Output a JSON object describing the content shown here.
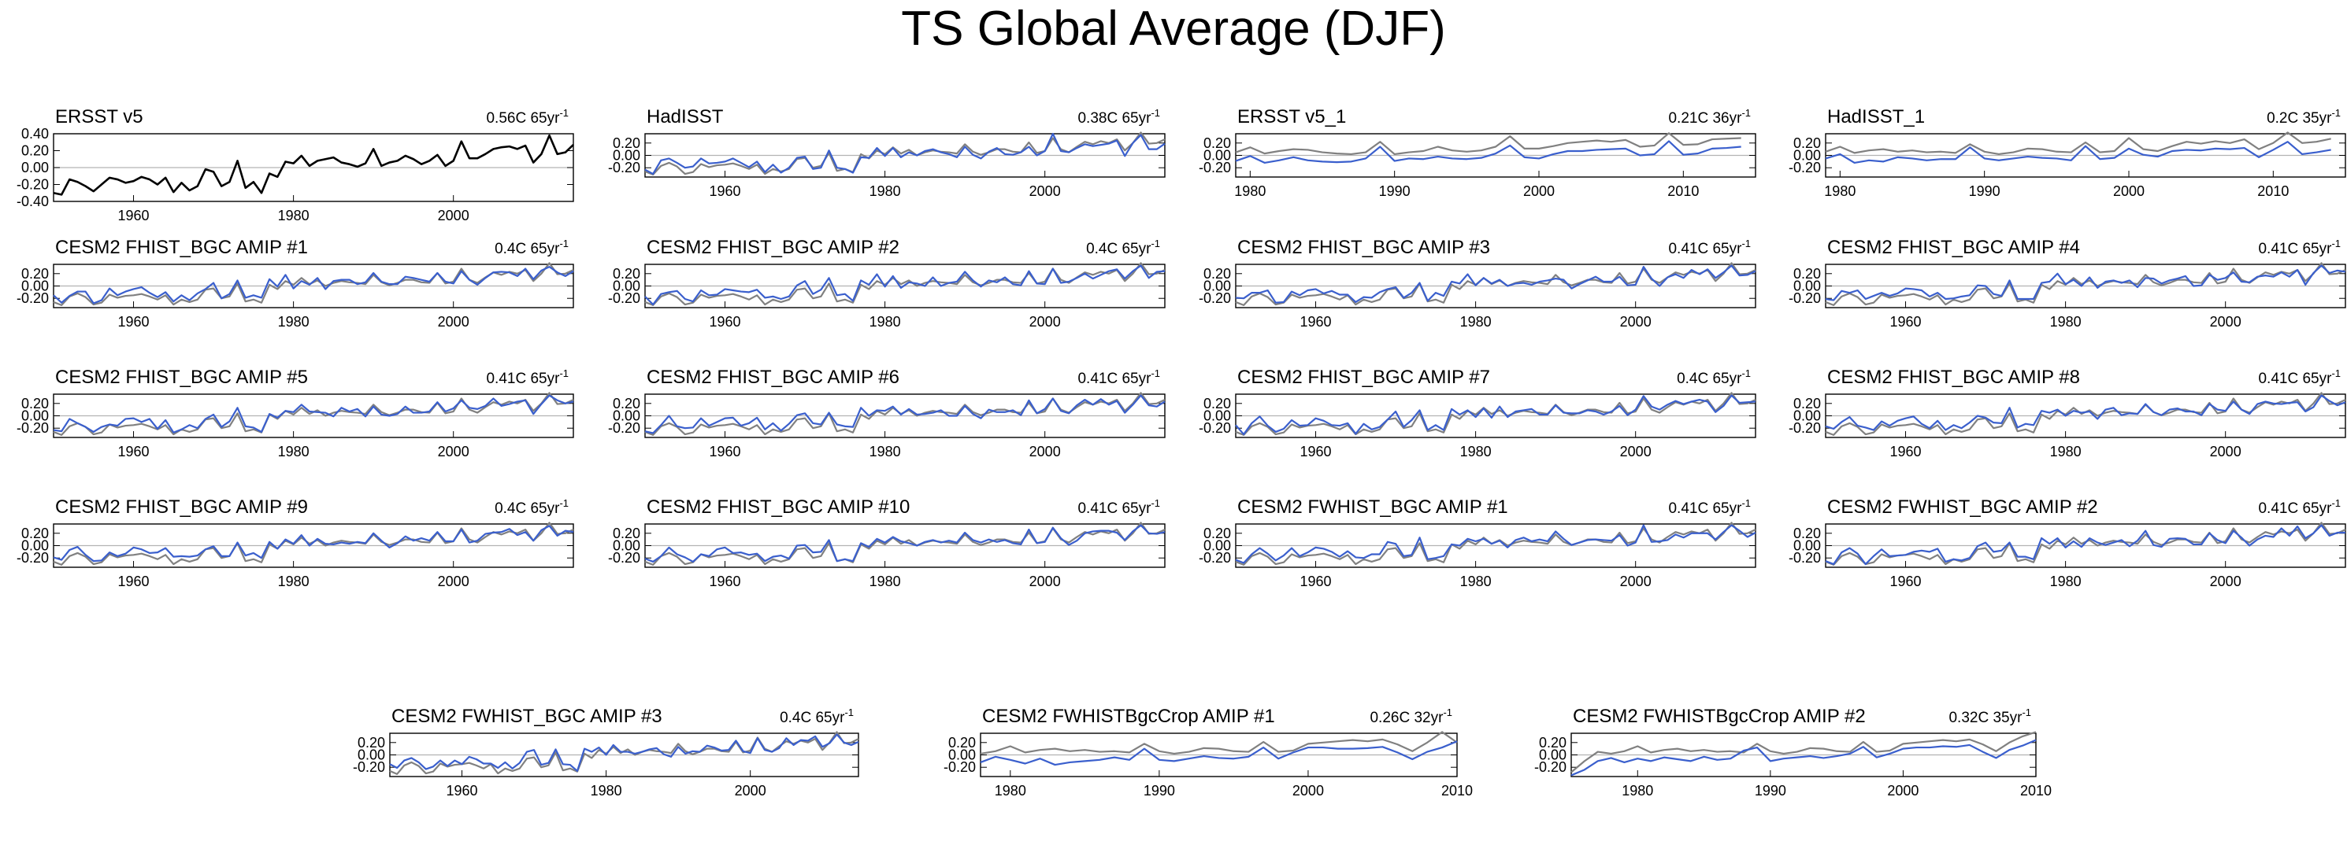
{
  "title": "TS Global Average (DJF)",
  "colors": {
    "observed": "#808080",
    "model": "#3a5fcd",
    "obs_only": "#000000",
    "zero_line": "#b3b3b3"
  },
  "chart_data": [
    {
      "type": "line",
      "title": "ERSST v5",
      "trend": "0.56C 65yr",
      "trend_sup": "-1",
      "xlim": [
        1950,
        2015
      ],
      "ylim": [
        -0.4,
        0.4
      ],
      "yticks": [
        "0.40",
        "0.20",
        "0.00",
        "-0.20",
        "-0.40"
      ],
      "xticks": [
        "1960",
        "1980",
        "2000"
      ],
      "series": [
        {
          "values": [
            -0.3,
            -0.32,
            -0.14,
            -0.17,
            -0.22,
            -0.28,
            -0.2,
            -0.12,
            -0.14,
            -0.18,
            -0.16,
            -0.11,
            -0.14,
            -0.2,
            -0.12,
            -0.29,
            -0.18,
            -0.27,
            -0.22,
            -0.02,
            -0.05,
            -0.22,
            -0.17,
            0.08,
            -0.24,
            -0.17,
            -0.3,
            -0.07,
            -0.11,
            0.07,
            0.05,
            0.14,
            0.02,
            0.08,
            0.1,
            0.12,
            0.06,
            0.04,
            0.01,
            0.05,
            0.22,
            0.02,
            0.06,
            0.08,
            0.14,
            0.1,
            0.04,
            0.08,
            0.15,
            0.02,
            0.08,
            0.31,
            0.11,
            0.11,
            0.16,
            0.22,
            0.24,
            0.25,
            0.22,
            0.26,
            0.06,
            0.16,
            0.38,
            0.16,
            0.18,
            0.27
          ]
        }
      ]
    },
    {
      "type": "line",
      "title": "HadISST",
      "trend": "0.38C 65yr",
      "trend_sup": "-1",
      "xlim": [
        1950,
        2015
      ],
      "ylim": [
        -0.35,
        0.35
      ],
      "yticks": [
        "0.20",
        "0.00",
        "-0.20"
      ],
      "xticks": [
        "1960",
        "1980",
        "2000"
      ],
      "series": [
        {
          "name": "obs",
          "values": [
            -0.26,
            -0.31,
            -0.17,
            -0.12,
            -0.18,
            -0.3,
            -0.27,
            -0.14,
            -0.19,
            -0.16,
            -0.15,
            -0.13,
            -0.17,
            -0.22,
            -0.15,
            -0.3,
            -0.22,
            -0.26,
            -0.22,
            -0.06,
            -0.04,
            -0.2,
            -0.17,
            0.04,
            -0.25,
            -0.22,
            -0.27,
            0.02,
            -0.05,
            0.08,
            0.02,
            0.13,
            0.03,
            0.09,
            0.0,
            0.05,
            0.08,
            0.06,
            0.05,
            0.03,
            0.18,
            0.06,
            0.01,
            0.05,
            0.1,
            0.1,
            0.06,
            0.05,
            0.21,
            0.04,
            0.07,
            0.28,
            0.1,
            0.05,
            0.14,
            0.22,
            0.18,
            0.23,
            0.2,
            0.26,
            0.08,
            0.2,
            0.37,
            0.19,
            0.2,
            0.26
          ]
        },
        {
          "name": "model",
          "values": [
            -0.23,
            -0.3,
            -0.08,
            -0.05,
            -0.12,
            -0.2,
            -0.18,
            -0.05,
            -0.13,
            -0.12,
            -0.1,
            -0.05,
            -0.12,
            -0.19,
            -0.1,
            -0.27,
            -0.15,
            -0.28,
            -0.2,
            -0.04,
            -0.02,
            -0.22,
            -0.2,
            0.08,
            -0.2,
            -0.22,
            -0.28,
            -0.03,
            -0.04,
            0.12,
            -0.01,
            0.12,
            -0.03,
            0.05,
            0.0,
            0.07,
            0.1,
            0.05,
            0.02,
            -0.03,
            0.14,
            0.01,
            -0.05,
            0.06,
            0.12,
            0.02,
            0.01,
            0.05,
            0.14,
            0.0,
            0.07,
            0.35,
            0.07,
            0.05,
            0.12,
            0.18,
            0.15,
            0.17,
            0.19,
            0.24,
            -0.01,
            0.2,
            0.33,
            0.1,
            0.1,
            0.19
          ]
        }
      ]
    },
    {
      "type": "line",
      "title": "ERSST v5_1",
      "trend": "0.21C 36yr",
      "trend_sup": "-1",
      "xlim": [
        1979,
        2015
      ],
      "ylim": [
        -0.35,
        0.35
      ],
      "yticks": [
        "0.20",
        "0.00",
        "-0.20"
      ],
      "xticks": [
        "1980",
        "1990",
        "2000",
        "2010"
      ],
      "series": [
        {
          "name": "obs",
          "values": [
            0.05,
            0.13,
            0.03,
            0.07,
            0.1,
            0.09,
            0.05,
            0.03,
            0.02,
            0.05,
            0.22,
            0.02,
            0.05,
            0.07,
            0.14,
            0.08,
            0.06,
            0.08,
            0.14,
            0.31,
            0.11,
            0.11,
            0.15,
            0.2,
            0.22,
            0.24,
            0.22,
            0.25,
            0.14,
            0.16,
            0.36,
            0.17,
            0.18,
            0.26,
            0.27,
            0.28
          ]
        },
        {
          "name": "model",
          "values": [
            -0.09,
            -0.01,
            -0.12,
            -0.08,
            -0.03,
            -0.08,
            -0.1,
            -0.11,
            -0.1,
            -0.05,
            0.14,
            -0.09,
            -0.05,
            -0.06,
            -0.02,
            -0.05,
            -0.06,
            -0.04,
            0.03,
            0.16,
            -0.03,
            -0.05,
            0.02,
            0.07,
            0.07,
            0.09,
            0.1,
            0.11,
            0.0,
            0.02,
            0.23,
            0.01,
            0.03,
            0.11,
            0.12,
            0.14
          ]
        }
      ]
    },
    {
      "type": "line",
      "title": "HadISST_1",
      "trend": "0.2C 35yr",
      "trend_sup": "-1",
      "xlim": [
        1979,
        2015
      ],
      "ylim": [
        -0.35,
        0.35
      ],
      "yticks": [
        "0.20",
        "0.00",
        "-0.20"
      ],
      "xticks": [
        "1980",
        "1990",
        "2000",
        "2010"
      ],
      "series": [
        {
          "name": "obs",
          "values": [
            0.06,
            0.14,
            0.04,
            0.08,
            0.1,
            0.06,
            0.08,
            0.05,
            0.06,
            0.04,
            0.18,
            0.06,
            0.02,
            0.05,
            0.11,
            0.1,
            0.06,
            0.05,
            0.21,
            0.05,
            0.07,
            0.28,
            0.1,
            0.07,
            0.15,
            0.22,
            0.19,
            0.23,
            0.2,
            0.26,
            0.1,
            0.2,
            0.37,
            0.2,
            0.22,
            0.27
          ]
        },
        {
          "name": "model",
          "values": [
            -0.05,
            0.02,
            -0.12,
            -0.08,
            -0.1,
            -0.03,
            -0.05,
            -0.08,
            -0.06,
            -0.06,
            0.13,
            -0.05,
            -0.08,
            -0.05,
            -0.02,
            -0.04,
            -0.05,
            -0.08,
            0.15,
            -0.06,
            -0.04,
            0.11,
            0.01,
            -0.02,
            0.07,
            0.09,
            0.08,
            0.11,
            0.1,
            0.12,
            -0.03,
            0.09,
            0.22,
            0.02,
            0.05,
            0.09
          ]
        }
      ]
    },
    {
      "type": "line",
      "title": "CESM2 FHIST_BGC AMIP #1",
      "trend": "0.4C 65yr",
      "trend_sup": "-1",
      "xlim": [
        1950,
        2015
      ],
      "ylim": [
        -0.35,
        0.35
      ],
      "yticks": [
        "0.20",
        "0.00",
        "-0.20"
      ],
      "xticks": [
        "1960",
        "1980",
        "2000"
      ],
      "series": [
        {
          "name": "obs",
          "ref": 1
        },
        {
          "name": "model",
          "seed": 11
        }
      ]
    },
    {
      "type": "line",
      "title": "CESM2 FHIST_BGC AMIP #2",
      "trend": "0.4C 65yr",
      "trend_sup": "-1",
      "xlim": [
        1950,
        2015
      ],
      "ylim": [
        -0.35,
        0.35
      ],
      "yticks": [
        "0.20",
        "0.00",
        "-0.20"
      ],
      "xticks": [
        "1960",
        "1980",
        "2000"
      ],
      "series": [
        {
          "name": "obs",
          "ref": 1
        },
        {
          "name": "model",
          "seed": 12
        }
      ]
    },
    {
      "type": "line",
      "title": "CESM2 FHIST_BGC AMIP #3",
      "trend": "0.41C 65yr",
      "trend_sup": "-1",
      "xlim": [
        1950,
        2015
      ],
      "ylim": [
        -0.35,
        0.35
      ],
      "yticks": [
        "0.20",
        "0.00",
        "-0.20"
      ],
      "xticks": [
        "1960",
        "1980",
        "2000"
      ],
      "series": [
        {
          "name": "obs",
          "ref": 1
        },
        {
          "name": "model",
          "seed": 13
        }
      ]
    },
    {
      "type": "line",
      "title": "CESM2 FHIST_BGC AMIP #4",
      "trend": "0.41C 65yr",
      "trend_sup": "-1",
      "xlim": [
        1950,
        2015
      ],
      "ylim": [
        -0.35,
        0.35
      ],
      "yticks": [
        "0.20",
        "0.00",
        "-0.20"
      ],
      "xticks": [
        "1960",
        "1980",
        "2000"
      ],
      "series": [
        {
          "name": "obs",
          "ref": 1
        },
        {
          "name": "model",
          "seed": 14
        }
      ]
    },
    {
      "type": "line",
      "title": "CESM2 FHIST_BGC AMIP #5",
      "trend": "0.41C 65yr",
      "trend_sup": "-1",
      "xlim": [
        1950,
        2015
      ],
      "ylim": [
        -0.35,
        0.35
      ],
      "yticks": [
        "0.20",
        "0.00",
        "-0.20"
      ],
      "xticks": [
        "1960",
        "1980",
        "2000"
      ],
      "series": [
        {
          "name": "obs",
          "ref": 1
        },
        {
          "name": "model",
          "seed": 15
        }
      ]
    },
    {
      "type": "line",
      "title": "CESM2 FHIST_BGC AMIP #6",
      "trend": "0.41C 65yr",
      "trend_sup": "-1",
      "xlim": [
        1950,
        2015
      ],
      "ylim": [
        -0.35,
        0.35
      ],
      "yticks": [
        "0.20",
        "0.00",
        "-0.20"
      ],
      "xticks": [
        "1960",
        "1980",
        "2000"
      ],
      "series": [
        {
          "name": "obs",
          "ref": 1
        },
        {
          "name": "model",
          "seed": 16
        }
      ]
    },
    {
      "type": "line",
      "title": "CESM2 FHIST_BGC AMIP #7",
      "trend": "0.4C 65yr",
      "trend_sup": "-1",
      "xlim": [
        1950,
        2015
      ],
      "ylim": [
        -0.35,
        0.35
      ],
      "yticks": [
        "0.20",
        "0.00",
        "-0.20"
      ],
      "xticks": [
        "1960",
        "1980",
        "2000"
      ],
      "series": [
        {
          "name": "obs",
          "ref": 1
        },
        {
          "name": "model",
          "seed": 17
        }
      ]
    },
    {
      "type": "line",
      "title": "CESM2 FHIST_BGC AMIP #8",
      "trend": "0.41C 65yr",
      "trend_sup": "-1",
      "xlim": [
        1950,
        2015
      ],
      "ylim": [
        -0.35,
        0.35
      ],
      "yticks": [
        "0.20",
        "0.00",
        "-0.20"
      ],
      "xticks": [
        "1960",
        "1980",
        "2000"
      ],
      "series": [
        {
          "name": "obs",
          "ref": 1
        },
        {
          "name": "model",
          "seed": 18
        }
      ]
    },
    {
      "type": "line",
      "title": "CESM2 FHIST_BGC AMIP #9",
      "trend": "0.4C 65yr",
      "trend_sup": "-1",
      "xlim": [
        1950,
        2015
      ],
      "ylim": [
        -0.35,
        0.35
      ],
      "yticks": [
        "0.20",
        "0.00",
        "-0.20"
      ],
      "xticks": [
        "1960",
        "1980",
        "2000"
      ],
      "series": [
        {
          "name": "obs",
          "ref": 1
        },
        {
          "name": "model",
          "seed": 19
        }
      ]
    },
    {
      "type": "line",
      "title": "CESM2 FHIST_BGC AMIP #10",
      "trend": "0.41C 65yr",
      "trend_sup": "-1",
      "xlim": [
        1950,
        2015
      ],
      "ylim": [
        -0.35,
        0.35
      ],
      "yticks": [
        "0.20",
        "0.00",
        "-0.20"
      ],
      "xticks": [
        "1960",
        "1980",
        "2000"
      ],
      "series": [
        {
          "name": "obs",
          "ref": 1
        },
        {
          "name": "model",
          "seed": 20
        }
      ]
    },
    {
      "type": "line",
      "title": "CESM2 FWHIST_BGC AMIP #1",
      "trend": "0.41C 65yr",
      "trend_sup": "-1",
      "xlim": [
        1950,
        2015
      ],
      "ylim": [
        -0.35,
        0.35
      ],
      "yticks": [
        "0.20",
        "0.00",
        "-0.20"
      ],
      "xticks": [
        "1960",
        "1980",
        "2000"
      ],
      "series": [
        {
          "name": "obs",
          "ref": 1
        },
        {
          "name": "model",
          "seed": 21
        }
      ]
    },
    {
      "type": "line",
      "title": "CESM2 FWHIST_BGC AMIP #2",
      "trend": "0.41C 65yr",
      "trend_sup": "-1",
      "xlim": [
        1950,
        2015
      ],
      "ylim": [
        -0.35,
        0.35
      ],
      "yticks": [
        "0.20",
        "0.00",
        "-0.20"
      ],
      "xticks": [
        "1960",
        "1980",
        "2000"
      ],
      "series": [
        {
          "name": "obs",
          "ref": 1
        },
        {
          "name": "model",
          "seed": 22
        }
      ]
    },
    {
      "type": "line",
      "title": "CESM2 FWHIST_BGC AMIP #3",
      "trend": "0.4C 65yr",
      "trend_sup": "-1",
      "xlim": [
        1950,
        2015
      ],
      "ylim": [
        -0.35,
        0.35
      ],
      "yticks": [
        "0.20",
        "0.00",
        "-0.20"
      ],
      "xticks": [
        "1960",
        "1980",
        "2000"
      ],
      "series": [
        {
          "name": "obs",
          "ref": 1
        },
        {
          "name": "model",
          "seed": 23
        }
      ]
    },
    {
      "type": "line",
      "title": "CESM2 FWHISTBgcCrop AMIP #1",
      "trend": "0.26C 32yr",
      "trend_sup": "-1",
      "xlim": [
        1978,
        2010
      ],
      "ylim": [
        -0.35,
        0.35
      ],
      "yticks": [
        "0.20",
        "0.00",
        "-0.20"
      ],
      "xticks": [
        "1980",
        "1990",
        "2000",
        "2010"
      ],
      "series": [
        {
          "name": "obs",
          "values": [
            0.02,
            0.06,
            0.14,
            0.04,
            0.08,
            0.1,
            0.06,
            0.08,
            0.05,
            0.06,
            0.04,
            0.18,
            0.06,
            0.02,
            0.05,
            0.11,
            0.1,
            0.06,
            0.05,
            0.21,
            0.05,
            0.07,
            0.18,
            0.2,
            0.22,
            0.24,
            0.22,
            0.25,
            0.17,
            0.06,
            0.2,
            0.37,
            0.2
          ]
        },
        {
          "name": "model",
          "values": [
            -0.12,
            -0.03,
            -0.08,
            -0.14,
            -0.06,
            -0.16,
            -0.12,
            -0.1,
            -0.08,
            -0.04,
            -0.08,
            0.1,
            -0.08,
            -0.1,
            -0.06,
            -0.02,
            -0.05,
            -0.06,
            -0.03,
            0.12,
            -0.06,
            0.04,
            0.12,
            0.12,
            0.1,
            0.1,
            0.11,
            0.13,
            0.04,
            -0.07,
            0.05,
            0.12,
            0.22
          ]
        }
      ]
    },
    {
      "type": "line",
      "title": "CESM2 FWHISTBgcCrop AMIP #2",
      "trend": "0.32C 35yr",
      "trend_sup": "-1",
      "xlim": [
        1975,
        2010
      ],
      "ylim": [
        -0.35,
        0.35
      ],
      "yticks": [
        "0.20",
        "0.00",
        "-0.20"
      ],
      "xticks": [
        "1980",
        "1990",
        "2000",
        "2010"
      ],
      "series": [
        {
          "name": "obs",
          "values": [
            -0.28,
            -0.1,
            0.05,
            0.02,
            0.06,
            0.14,
            0.04,
            0.08,
            0.1,
            0.06,
            0.08,
            0.05,
            0.06,
            0.04,
            0.18,
            0.06,
            0.02,
            0.05,
            0.11,
            0.1,
            0.06,
            0.05,
            0.21,
            0.05,
            0.07,
            0.18,
            0.2,
            0.22,
            0.24,
            0.22,
            0.25,
            0.17,
            0.06,
            0.2,
            0.3,
            0.37
          ]
        },
        {
          "name": "model",
          "values": [
            -0.33,
            -0.24,
            -0.1,
            -0.05,
            -0.12,
            -0.06,
            -0.1,
            -0.04,
            -0.07,
            -0.1,
            -0.03,
            -0.08,
            -0.06,
            0.07,
            0.12,
            -0.1,
            -0.06,
            -0.04,
            -0.02,
            -0.05,
            -0.02,
            0.02,
            0.13,
            -0.04,
            0.02,
            0.1,
            0.12,
            0.12,
            0.14,
            0.13,
            0.16,
            0.05,
            -0.05,
            0.08,
            0.15,
            0.24
          ]
        }
      ]
    }
  ]
}
